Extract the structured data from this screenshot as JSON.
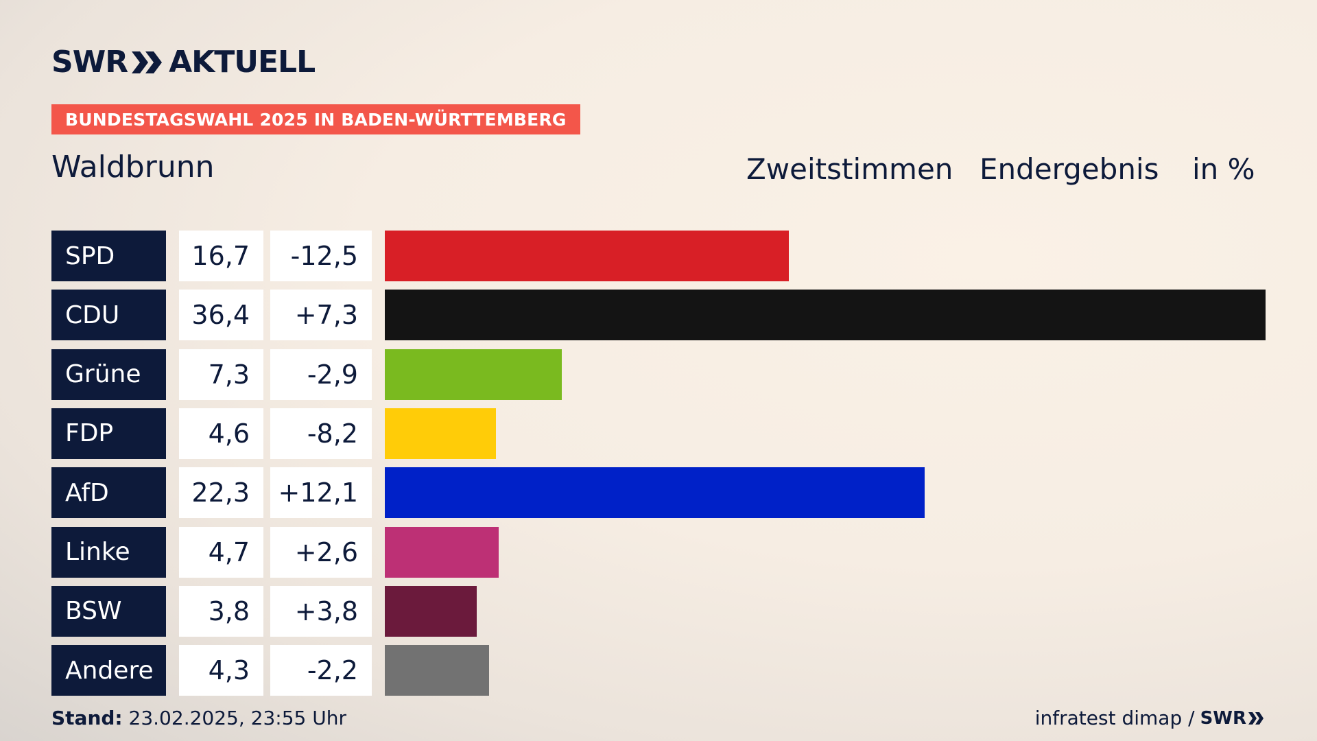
{
  "brand": {
    "left": "SWR",
    "right": "AKTUELL",
    "footer_logo": "SWR"
  },
  "banner": "BUNDESTAGSWAHL 2025 IN BADEN-WÜRTTEMBERG",
  "place": "Waldbrunn",
  "header": {
    "vote": "Zweitstimmen",
    "status": "Endergebnis",
    "unit": "in %"
  },
  "footer": {
    "stand_label": "Stand:",
    "stand_value": "23.02.2025, 23:55 Uhr",
    "source": "infratest dimap /"
  },
  "chart_data": {
    "type": "bar",
    "categories": [
      "SPD",
      "CDU",
      "Grüne",
      "FDP",
      "AfD",
      "Linke",
      "BSW",
      "Andere"
    ],
    "values": [
      16.7,
      36.4,
      7.3,
      4.6,
      22.3,
      4.7,
      3.8,
      4.3
    ],
    "value_labels": [
      "16,7",
      "36,4",
      "7,3",
      "4,6",
      "22,3",
      "4,7",
      "3,8",
      "4,3"
    ],
    "diff_labels": [
      "-12,5",
      "+7,3",
      "-2,9",
      "-8,2",
      "+12,1",
      "+2,6",
      "+3,8",
      "-2,2"
    ],
    "colors": [
      "#d81f26",
      "#141414",
      "#7aba1f",
      "#ffcc08",
      "#0021c8",
      "#bd3075",
      "#6b1a3c",
      "#727272"
    ],
    "xlim": [
      0,
      36.4
    ]
  }
}
